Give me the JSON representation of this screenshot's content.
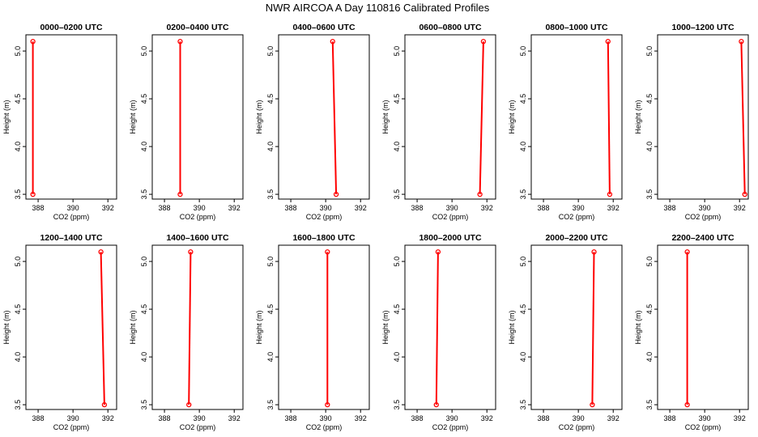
{
  "figure_title": "NWR AIRCOA A  Day 110816  Calibrated Profiles",
  "chart_data": {
    "type": "line",
    "xlabel": "CO2 (ppm)",
    "ylabel": "Height (m)",
    "xlim": [
      387.3,
      392.5
    ],
    "ylim": [
      3.45,
      5.17
    ],
    "xticks": [
      388,
      390,
      392
    ],
    "xtick_labels": [
      "388",
      "390",
      "392"
    ],
    "yticks": [
      3.5,
      4.0,
      4.5,
      5.0
    ],
    "ytick_labels": [
      "3.5",
      "4.0",
      "4.5",
      "5.0"
    ],
    "series_color": "#ff0000",
    "panels": [
      {
        "title": "0000–0200 UTC",
        "points": [
          {
            "x": 387.7,
            "y": 3.5
          },
          {
            "x": 387.7,
            "y": 5.1
          }
        ]
      },
      {
        "title": "0200–0400 UTC",
        "points": [
          {
            "x": 388.9,
            "y": 3.5
          },
          {
            "x": 388.9,
            "y": 5.1
          }
        ]
      },
      {
        "title": "0400–0600 UTC",
        "points": [
          {
            "x": 390.6,
            "y": 3.5
          },
          {
            "x": 390.4,
            "y": 5.1
          }
        ]
      },
      {
        "title": "0600–0800 UTC",
        "points": [
          {
            "x": 391.6,
            "y": 3.5
          },
          {
            "x": 391.8,
            "y": 5.1
          }
        ]
      },
      {
        "title": "0800–1000 UTC",
        "points": [
          {
            "x": 391.8,
            "y": 3.5
          },
          {
            "x": 391.7,
            "y": 5.1
          }
        ]
      },
      {
        "title": "1000–1200 UTC",
        "points": [
          {
            "x": 392.3,
            "y": 3.5
          },
          {
            "x": 392.1,
            "y": 5.1
          }
        ]
      },
      {
        "title": "1200–1400 UTC",
        "points": [
          {
            "x": 391.8,
            "y": 3.5
          },
          {
            "x": 391.6,
            "y": 5.1
          }
        ]
      },
      {
        "title": "1400–1600 UTC",
        "points": [
          {
            "x": 389.4,
            "y": 3.5
          },
          {
            "x": 389.5,
            "y": 5.1
          }
        ]
      },
      {
        "title": "1600–1800 UTC",
        "points": [
          {
            "x": 390.1,
            "y": 3.5
          },
          {
            "x": 390.1,
            "y": 5.1
          }
        ]
      },
      {
        "title": "1800–2000 UTC",
        "points": [
          {
            "x": 389.1,
            "y": 3.5
          },
          {
            "x": 389.2,
            "y": 5.1
          }
        ]
      },
      {
        "title": "2000–2200 UTC",
        "points": [
          {
            "x": 390.8,
            "y": 3.5
          },
          {
            "x": 390.9,
            "y": 5.1
          }
        ]
      },
      {
        "title": "2200–2400 UTC",
        "points": [
          {
            "x": 389.0,
            "y": 3.5
          },
          {
            "x": 389.0,
            "y": 5.1
          }
        ]
      }
    ]
  }
}
